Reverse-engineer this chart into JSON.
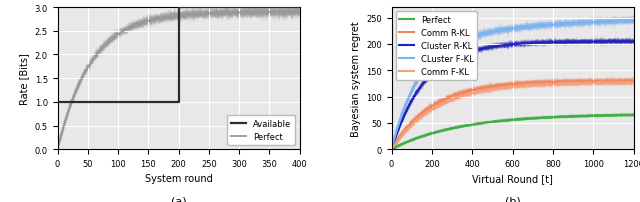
{
  "fig_width": 6.4,
  "fig_height": 2.03,
  "dpi": 100,
  "subplot_a": {
    "xlabel": "System round",
    "ylabel": "Rate [Bits]",
    "xlim": [
      0,
      400
    ],
    "ylim": [
      0.0,
      3.0
    ],
    "yticks": [
      0.0,
      0.5,
      1.0,
      1.5,
      2.0,
      2.5,
      3.0
    ],
    "xticks": [
      0,
      50,
      100,
      150,
      200,
      250,
      300,
      350,
      400
    ],
    "available_color": "#2c2c2c",
    "perfect_color": "#999999",
    "bg_color": "#e8e8e8",
    "grid_color": "white",
    "legend_order": [
      "Available",
      "Perfect"
    ]
  },
  "subplot_b": {
    "xlabel": "Virtual Round [t]",
    "ylabel": "Bayesian system regret",
    "xlim": [
      0,
      1200
    ],
    "ylim": [
      0,
      270
    ],
    "yticks": [
      0,
      50,
      100,
      150,
      200,
      250
    ],
    "xticks": [
      0,
      200,
      400,
      600,
      800,
      1000,
      1200
    ],
    "bg_color": "#e8e8e8",
    "grid_color": "white",
    "colors": {
      "Perfect": "#3cb043",
      "Comm R-KL": "#f4845f",
      "Cluster R-KL": "#2222bb",
      "CLuster F-KL": "#7bb3f0",
      "Comm F-KL": "#f4a07a"
    },
    "legend_labels": [
      "Perfect",
      "Comm R-KL",
      "Cluster R-KL",
      "CLuster F-KL",
      "Comm F-KL"
    ],
    "final_values": {
      "Perfect": 67,
      "Comm R-KL": 130,
      "Cluster R-KL": 205,
      "CLuster F-KL": 260,
      "Comm F-KL": 130
    }
  }
}
